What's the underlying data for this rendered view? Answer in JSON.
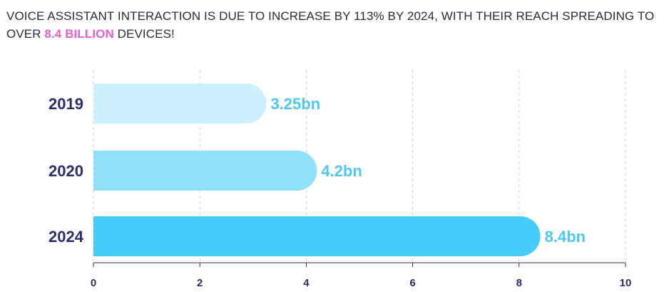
{
  "headline": {
    "before": "VOICE ASSISTANT INTERACTION IS DUE TO INCREASE BY 113% BY 2024, WITH THEIR REACH SPREADING TO OVER ",
    "highlight": "8.4 BILLION",
    "after": " DEVICES!"
  },
  "colors": {
    "highlight": "#e45fd1",
    "category_text": "#2b2d6e",
    "value_text": "#4cc8f2",
    "grid": "#cfd3e6",
    "axis": "#2b2d6e"
  },
  "chart_data": {
    "type": "bar",
    "orientation": "horizontal",
    "categories": [
      "2019",
      "2020",
      "2024"
    ],
    "values": [
      3.25,
      4.2,
      8.4
    ],
    "value_labels": [
      "3.25bn",
      "4.2bn",
      "8.4bn"
    ],
    "bar_colors": [
      "#ccf0fc",
      "#8fe0fb",
      "#45ccfb"
    ],
    "xlim": [
      0,
      10
    ],
    "x_ticks": [
      0,
      2,
      4,
      6,
      8,
      10
    ],
    "grid": true,
    "legend": "none"
  }
}
